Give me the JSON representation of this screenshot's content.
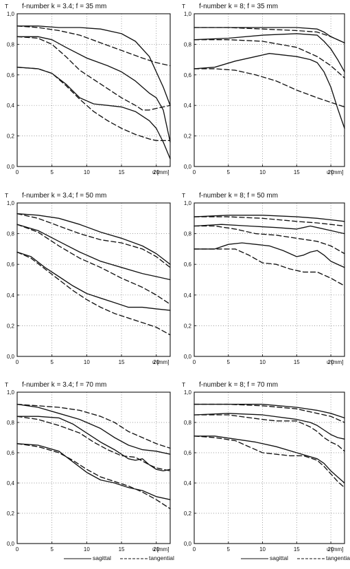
{
  "chart_data": [
    {
      "type": "line",
      "title": "f-number k = 3.4; f = 35 mm",
      "ylabel": "T",
      "xlabel": "u [mm]",
      "xlim": [
        0,
        22
      ],
      "ylim": [
        0,
        1
      ],
      "xticks": [
        0,
        5,
        10,
        15,
        20
      ],
      "yticks": [
        "0,0",
        "0,2",
        "0,4",
        "0,6",
        "0,8",
        "1,0"
      ],
      "grid": true,
      "series": [
        {
          "style": "solid",
          "x": [
            0,
            3,
            6,
            9,
            12,
            15,
            17,
            19,
            20,
            21,
            22
          ],
          "y": [
            0.92,
            0.92,
            0.91,
            0.91,
            0.9,
            0.87,
            0.82,
            0.72,
            0.62,
            0.52,
            0.4
          ]
        },
        {
          "style": "dashed",
          "x": [
            0,
            3,
            6,
            9,
            12,
            15,
            18,
            20,
            22
          ],
          "y": [
            0.92,
            0.91,
            0.89,
            0.86,
            0.81,
            0.76,
            0.71,
            0.68,
            0.66
          ]
        },
        {
          "style": "solid",
          "x": [
            0,
            3,
            5,
            7,
            10,
            13,
            15,
            17,
            19,
            20,
            21,
            22
          ],
          "y": [
            0.85,
            0.85,
            0.83,
            0.78,
            0.71,
            0.66,
            0.62,
            0.56,
            0.48,
            0.45,
            0.37,
            0.16
          ]
        },
        {
          "style": "dashed",
          "x": [
            0,
            3,
            5,
            7,
            9,
            11,
            13,
            15,
            17,
            18,
            19,
            20,
            21,
            22
          ],
          "y": [
            0.85,
            0.84,
            0.8,
            0.72,
            0.63,
            0.57,
            0.51,
            0.45,
            0.4,
            0.37,
            0.37,
            0.38,
            0.39,
            0.4
          ]
        },
        {
          "style": "solid",
          "x": [
            0,
            3,
            5,
            7,
            9,
            11,
            13,
            15,
            17,
            19,
            20,
            21,
            22
          ],
          "y": [
            0.65,
            0.64,
            0.61,
            0.54,
            0.45,
            0.41,
            0.4,
            0.39,
            0.36,
            0.3,
            0.25,
            0.16,
            0.05
          ]
        },
        {
          "style": "dashed",
          "x": [
            0,
            3,
            5,
            7,
            9,
            11,
            13,
            15,
            17,
            19,
            20,
            22
          ],
          "y": [
            0.65,
            0.64,
            0.61,
            0.53,
            0.44,
            0.36,
            0.3,
            0.25,
            0.21,
            0.18,
            0.17,
            0.17
          ]
        }
      ]
    },
    {
      "type": "line",
      "title": "f-number k = 8; f = 35 mm",
      "ylabel": "T",
      "xlabel": "u [mm]",
      "xlim": [
        0,
        22
      ],
      "ylim": [
        0,
        1
      ],
      "xticks": [
        0,
        5,
        10,
        15,
        20
      ],
      "yticks": [
        "0,0",
        "0,2",
        "0,4",
        "0,6",
        "0,8",
        "1,0"
      ],
      "grid": true,
      "series": [
        {
          "style": "solid",
          "x": [
            0,
            5,
            10,
            15,
            18,
            19,
            20,
            21,
            22
          ],
          "y": [
            0.91,
            0.91,
            0.91,
            0.91,
            0.9,
            0.88,
            0.85,
            0.83,
            0.81
          ]
        },
        {
          "style": "dashed",
          "x": [
            0,
            5,
            10,
            15,
            18,
            20,
            22
          ],
          "y": [
            0.91,
            0.91,
            0.9,
            0.89,
            0.88,
            0.85,
            0.81
          ]
        },
        {
          "style": "solid",
          "x": [
            0,
            5,
            10,
            15,
            18,
            19,
            20,
            21,
            22
          ],
          "y": [
            0.83,
            0.84,
            0.86,
            0.87,
            0.86,
            0.82,
            0.77,
            0.7,
            0.62
          ]
        },
        {
          "style": "dashed",
          "x": [
            0,
            5,
            10,
            15,
            18,
            20,
            22
          ],
          "y": [
            0.83,
            0.83,
            0.82,
            0.78,
            0.72,
            0.66,
            0.58
          ]
        },
        {
          "style": "solid",
          "x": [
            0,
            3,
            6,
            9,
            11,
            13,
            15,
            17,
            18,
            19,
            20,
            21,
            22
          ],
          "y": [
            0.64,
            0.65,
            0.69,
            0.72,
            0.74,
            0.73,
            0.72,
            0.7,
            0.68,
            0.62,
            0.52,
            0.38,
            0.25
          ]
        },
        {
          "style": "dashed",
          "x": [
            0,
            3,
            6,
            9,
            12,
            15,
            18,
            20,
            22
          ],
          "y": [
            0.64,
            0.64,
            0.63,
            0.6,
            0.56,
            0.5,
            0.45,
            0.42,
            0.39
          ]
        }
      ]
    },
    {
      "type": "line",
      "title": "f-number k = 3.4; f = 50 mm",
      "ylabel": "T",
      "xlabel": "u [mm]",
      "xlim": [
        0,
        22
      ],
      "ylim": [
        0,
        1
      ],
      "xticks": [
        0,
        5,
        10,
        15,
        20
      ],
      "yticks": [
        "0,0",
        "0,2",
        "0,4",
        "0,6",
        "0,8",
        "1,0"
      ],
      "grid": true,
      "series": [
        {
          "style": "solid",
          "x": [
            0,
            3,
            6,
            9,
            12,
            15,
            18,
            20,
            22
          ],
          "y": [
            0.93,
            0.92,
            0.9,
            0.86,
            0.81,
            0.77,
            0.72,
            0.67,
            0.6
          ]
        },
        {
          "style": "dashed",
          "x": [
            0,
            3,
            6,
            9,
            12,
            15,
            18,
            20,
            22
          ],
          "y": [
            0.93,
            0.9,
            0.85,
            0.8,
            0.76,
            0.74,
            0.7,
            0.65,
            0.58
          ]
        },
        {
          "style": "solid",
          "x": [
            0,
            3,
            6,
            9,
            12,
            15,
            18,
            20,
            22
          ],
          "y": [
            0.86,
            0.82,
            0.75,
            0.68,
            0.62,
            0.58,
            0.54,
            0.52,
            0.5
          ]
        },
        {
          "style": "dashed",
          "x": [
            0,
            3,
            6,
            9,
            12,
            15,
            18,
            20,
            22
          ],
          "y": [
            0.86,
            0.81,
            0.72,
            0.64,
            0.58,
            0.51,
            0.45,
            0.4,
            0.34
          ]
        },
        {
          "style": "solid",
          "x": [
            0,
            2,
            4,
            6,
            8,
            10,
            12,
            14,
            16,
            18,
            20,
            22
          ],
          "y": [
            0.68,
            0.65,
            0.58,
            0.52,
            0.46,
            0.41,
            0.38,
            0.35,
            0.32,
            0.32,
            0.31,
            0.3
          ]
        },
        {
          "style": "dashed",
          "x": [
            0,
            2,
            4,
            6,
            8,
            10,
            12,
            14,
            16,
            18,
            20,
            22
          ],
          "y": [
            0.68,
            0.64,
            0.57,
            0.5,
            0.43,
            0.37,
            0.32,
            0.28,
            0.25,
            0.22,
            0.19,
            0.14
          ]
        }
      ]
    },
    {
      "type": "line",
      "title": "f-number k = 8; f = 50 mm",
      "ylabel": "T",
      "xlabel": "u [mm]",
      "xlim": [
        0,
        22
      ],
      "ylim": [
        0,
        1
      ],
      "xticks": [
        0,
        5,
        10,
        15,
        20
      ],
      "yticks": [
        "0,0",
        "0,2",
        "0,4",
        "0,6",
        "0,8",
        "1,0"
      ],
      "grid": true,
      "series": [
        {
          "style": "solid",
          "x": [
            0,
            5,
            10,
            15,
            18,
            20,
            22
          ],
          "y": [
            0.91,
            0.92,
            0.92,
            0.91,
            0.9,
            0.89,
            0.88
          ]
        },
        {
          "style": "dashed",
          "x": [
            0,
            5,
            10,
            15,
            18,
            20,
            22
          ],
          "y": [
            0.91,
            0.91,
            0.9,
            0.88,
            0.87,
            0.86,
            0.85
          ]
        },
        {
          "style": "solid",
          "x": [
            0,
            4,
            8,
            12,
            15,
            16,
            17,
            18,
            20,
            22
          ],
          "y": [
            0.85,
            0.86,
            0.85,
            0.84,
            0.83,
            0.84,
            0.85,
            0.84,
            0.82,
            0.8
          ]
        },
        {
          "style": "dashed",
          "x": [
            0,
            3,
            6,
            9,
            12,
            15,
            18,
            20,
            22
          ],
          "y": [
            0.85,
            0.85,
            0.83,
            0.8,
            0.79,
            0.77,
            0.75,
            0.72,
            0.67
          ]
        },
        {
          "style": "solid",
          "x": [
            0,
            3,
            5,
            7,
            9,
            11,
            13,
            15,
            16,
            17,
            18,
            19,
            20,
            21,
            22
          ],
          "y": [
            0.7,
            0.7,
            0.73,
            0.74,
            0.73,
            0.72,
            0.69,
            0.65,
            0.66,
            0.68,
            0.69,
            0.66,
            0.62,
            0.6,
            0.58
          ]
        },
        {
          "style": "dashed",
          "x": [
            0,
            3,
            6,
            8,
            10,
            12,
            14,
            16,
            18,
            20,
            22
          ],
          "y": [
            0.7,
            0.7,
            0.7,
            0.66,
            0.61,
            0.6,
            0.57,
            0.55,
            0.55,
            0.51,
            0.46
          ]
        }
      ]
    },
    {
      "type": "line",
      "title": "f-number k = 3.4; f = 70 mm",
      "ylabel": "T",
      "xlabel": "u [mm]",
      "xlim": [
        0,
        22
      ],
      "ylim": [
        0,
        1
      ],
      "xticks": [
        0,
        5,
        10,
        15,
        20
      ],
      "yticks": [
        "0,0",
        "0,2",
        "0,4",
        "0,6",
        "0,8",
        "1,0"
      ],
      "grid": true,
      "series": [
        {
          "style": "dashed",
          "x": [
            0,
            3,
            6,
            9,
            12,
            14,
            16,
            18,
            20,
            22
          ],
          "y": [
            0.92,
            0.91,
            0.9,
            0.88,
            0.84,
            0.8,
            0.74,
            0.7,
            0.66,
            0.63
          ]
        },
        {
          "style": "solid",
          "x": [
            0,
            3,
            6,
            9,
            12,
            14,
            16,
            18,
            20,
            22
          ],
          "y": [
            0.92,
            0.9,
            0.86,
            0.82,
            0.76,
            0.7,
            0.65,
            0.62,
            0.61,
            0.59
          ]
        },
        {
          "style": "dashed",
          "x": [
            0,
            3,
            6,
            9,
            11,
            13,
            15,
            17,
            19,
            20,
            22
          ],
          "y": [
            0.84,
            0.82,
            0.78,
            0.73,
            0.67,
            0.62,
            0.58,
            0.57,
            0.52,
            0.5,
            0.48
          ]
        },
        {
          "style": "solid",
          "x": [
            0,
            3,
            6,
            8,
            10,
            12,
            14,
            16,
            17,
            18,
            19,
            20,
            21,
            22
          ],
          "y": [
            0.84,
            0.84,
            0.83,
            0.79,
            0.73,
            0.67,
            0.62,
            0.56,
            0.55,
            0.56,
            0.52,
            0.49,
            0.48,
            0.49
          ]
        },
        {
          "style": "dashed",
          "x": [
            0,
            3,
            6,
            8,
            10,
            12,
            14,
            16,
            18,
            20,
            22
          ],
          "y": [
            0.66,
            0.64,
            0.6,
            0.55,
            0.49,
            0.44,
            0.41,
            0.38,
            0.34,
            0.29,
            0.23
          ]
        },
        {
          "style": "solid",
          "x": [
            0,
            3,
            6,
            8,
            10,
            12,
            14,
            16,
            18,
            20,
            22
          ],
          "y": [
            0.66,
            0.65,
            0.61,
            0.54,
            0.47,
            0.42,
            0.4,
            0.37,
            0.35,
            0.31,
            0.29
          ]
        }
      ]
    },
    {
      "type": "line",
      "title": "f-number k = 8; f = 70 mm",
      "ylabel": "T",
      "xlabel": "u [mm]",
      "xlim": [
        0,
        22
      ],
      "ylim": [
        0,
        1
      ],
      "xticks": [
        0,
        5,
        10,
        15,
        20
      ],
      "yticks": [
        "0,0",
        "0,2",
        "0,4",
        "0,6",
        "0,8",
        "1,0"
      ],
      "grid": true,
      "series": [
        {
          "style": "solid",
          "x": [
            0,
            5,
            10,
            15,
            18,
            20,
            22
          ],
          "y": [
            0.92,
            0.92,
            0.92,
            0.9,
            0.88,
            0.86,
            0.83
          ]
        },
        {
          "style": "dashed",
          "x": [
            0,
            5,
            10,
            15,
            18,
            20,
            22
          ],
          "y": [
            0.92,
            0.92,
            0.91,
            0.89,
            0.86,
            0.84,
            0.8
          ]
        },
        {
          "style": "solid",
          "x": [
            0,
            5,
            10,
            15,
            17,
            18,
            19,
            20,
            21,
            22
          ],
          "y": [
            0.85,
            0.86,
            0.85,
            0.82,
            0.8,
            0.78,
            0.75,
            0.72,
            0.7,
            0.69
          ]
        },
        {
          "style": "dashed",
          "x": [
            0,
            5,
            10,
            12,
            15,
            17,
            18,
            19,
            20,
            21,
            22
          ],
          "y": [
            0.85,
            0.85,
            0.82,
            0.81,
            0.81,
            0.77,
            0.74,
            0.7,
            0.67,
            0.65,
            0.61
          ]
        },
        {
          "style": "solid",
          "x": [
            0,
            3,
            6,
            9,
            12,
            15,
            18,
            19,
            20,
            21,
            22
          ],
          "y": [
            0.71,
            0.71,
            0.69,
            0.67,
            0.64,
            0.6,
            0.56,
            0.53,
            0.48,
            0.44,
            0.4
          ]
        },
        {
          "style": "dashed",
          "x": [
            0,
            3,
            6,
            8,
            10,
            12,
            14,
            16,
            18,
            19,
            20,
            21,
            22
          ],
          "y": [
            0.71,
            0.7,
            0.68,
            0.64,
            0.6,
            0.59,
            0.58,
            0.58,
            0.55,
            0.51,
            0.46,
            0.41,
            0.37
          ]
        }
      ]
    }
  ],
  "legend": [
    {
      "label": "sagittal",
      "style": "solid"
    },
    {
      "label": "tangential",
      "style": "dashed"
    }
  ]
}
